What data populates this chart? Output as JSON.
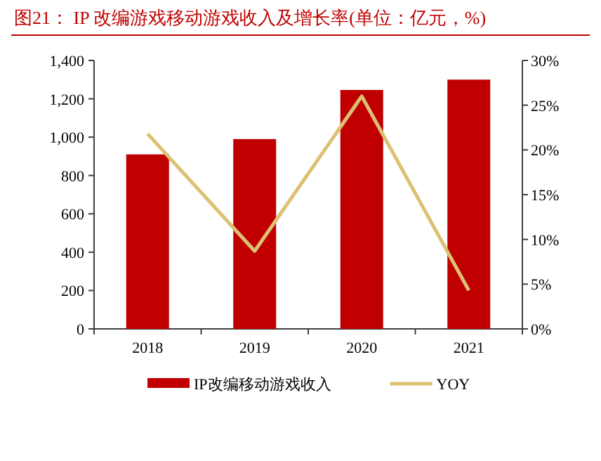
{
  "chart_data": {
    "type": "bar",
    "title": "图21：  IP 改编游戏移动游戏收入及增长率(单位：亿元，%)",
    "categories": [
      "2018",
      "2019",
      "2020",
      "2021"
    ],
    "series": [
      {
        "name": "IP改编移动游戏收入",
        "color": "#c00000",
        "values": [
          910,
          990,
          1246,
          1300
        ]
      },
      {
        "name": "YOY",
        "type": "line",
        "axis": "y2",
        "color": "#dcc173",
        "values": [
          21.8,
          8.7,
          26.0,
          4.3
        ]
      }
    ],
    "ylim": [
      0,
      1400
    ],
    "yticks": [
      0,
      200,
      400,
      600,
      800,
      {
        "value": 1000,
        "label": "1,000"
      },
      {
        "value": 1200,
        "label": "1,200"
      },
      {
        "value": 1400,
        "label": "1,400"
      }
    ],
    "y2lim": [
      0,
      30
    ],
    "y2ticks": [
      {
        "value": 0,
        "label": "0%"
      },
      {
        "value": 5,
        "label": "5%"
      },
      {
        "value": 10,
        "label": "10%"
      },
      {
        "value": 15,
        "label": "15%"
      },
      {
        "value": 20,
        "label": "20%"
      },
      {
        "value": 25,
        "label": "25%"
      },
      {
        "value": 30,
        "label": "30%"
      }
    ],
    "legend": "bottom",
    "grid": false
  }
}
